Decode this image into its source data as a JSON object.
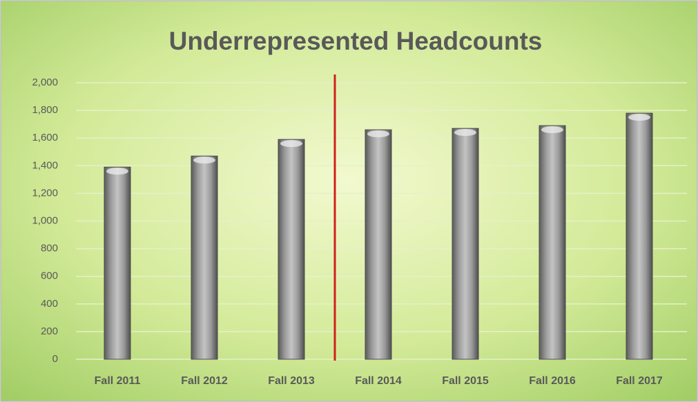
{
  "chart_data": {
    "type": "bar",
    "title": "Underrepresented Headcounts",
    "categories": [
      "Fall 2011",
      "Fall 2012",
      "Fall 2013",
      "Fall 2014",
      "Fall 2015",
      "Fall 2016",
      "Fall 2017"
    ],
    "values": [
      1390,
      1470,
      1590,
      1660,
      1670,
      1690,
      1780
    ],
    "color": "#8c8c8c",
    "ylim": [
      0,
      2000
    ],
    "yticks": [
      0,
      200,
      400,
      600,
      800,
      {
        "value": 1000,
        "label": "1,000"
      },
      {
        "value": 1200,
        "label": "1,200"
      },
      {
        "value": 1400,
        "label": "1,400"
      },
      {
        "value": 1600,
        "label": "1,600"
      },
      {
        "value": 1800,
        "label": "1,800"
      },
      {
        "value": 2000,
        "label": "2,000"
      }
    ],
    "grid": true
  }
}
